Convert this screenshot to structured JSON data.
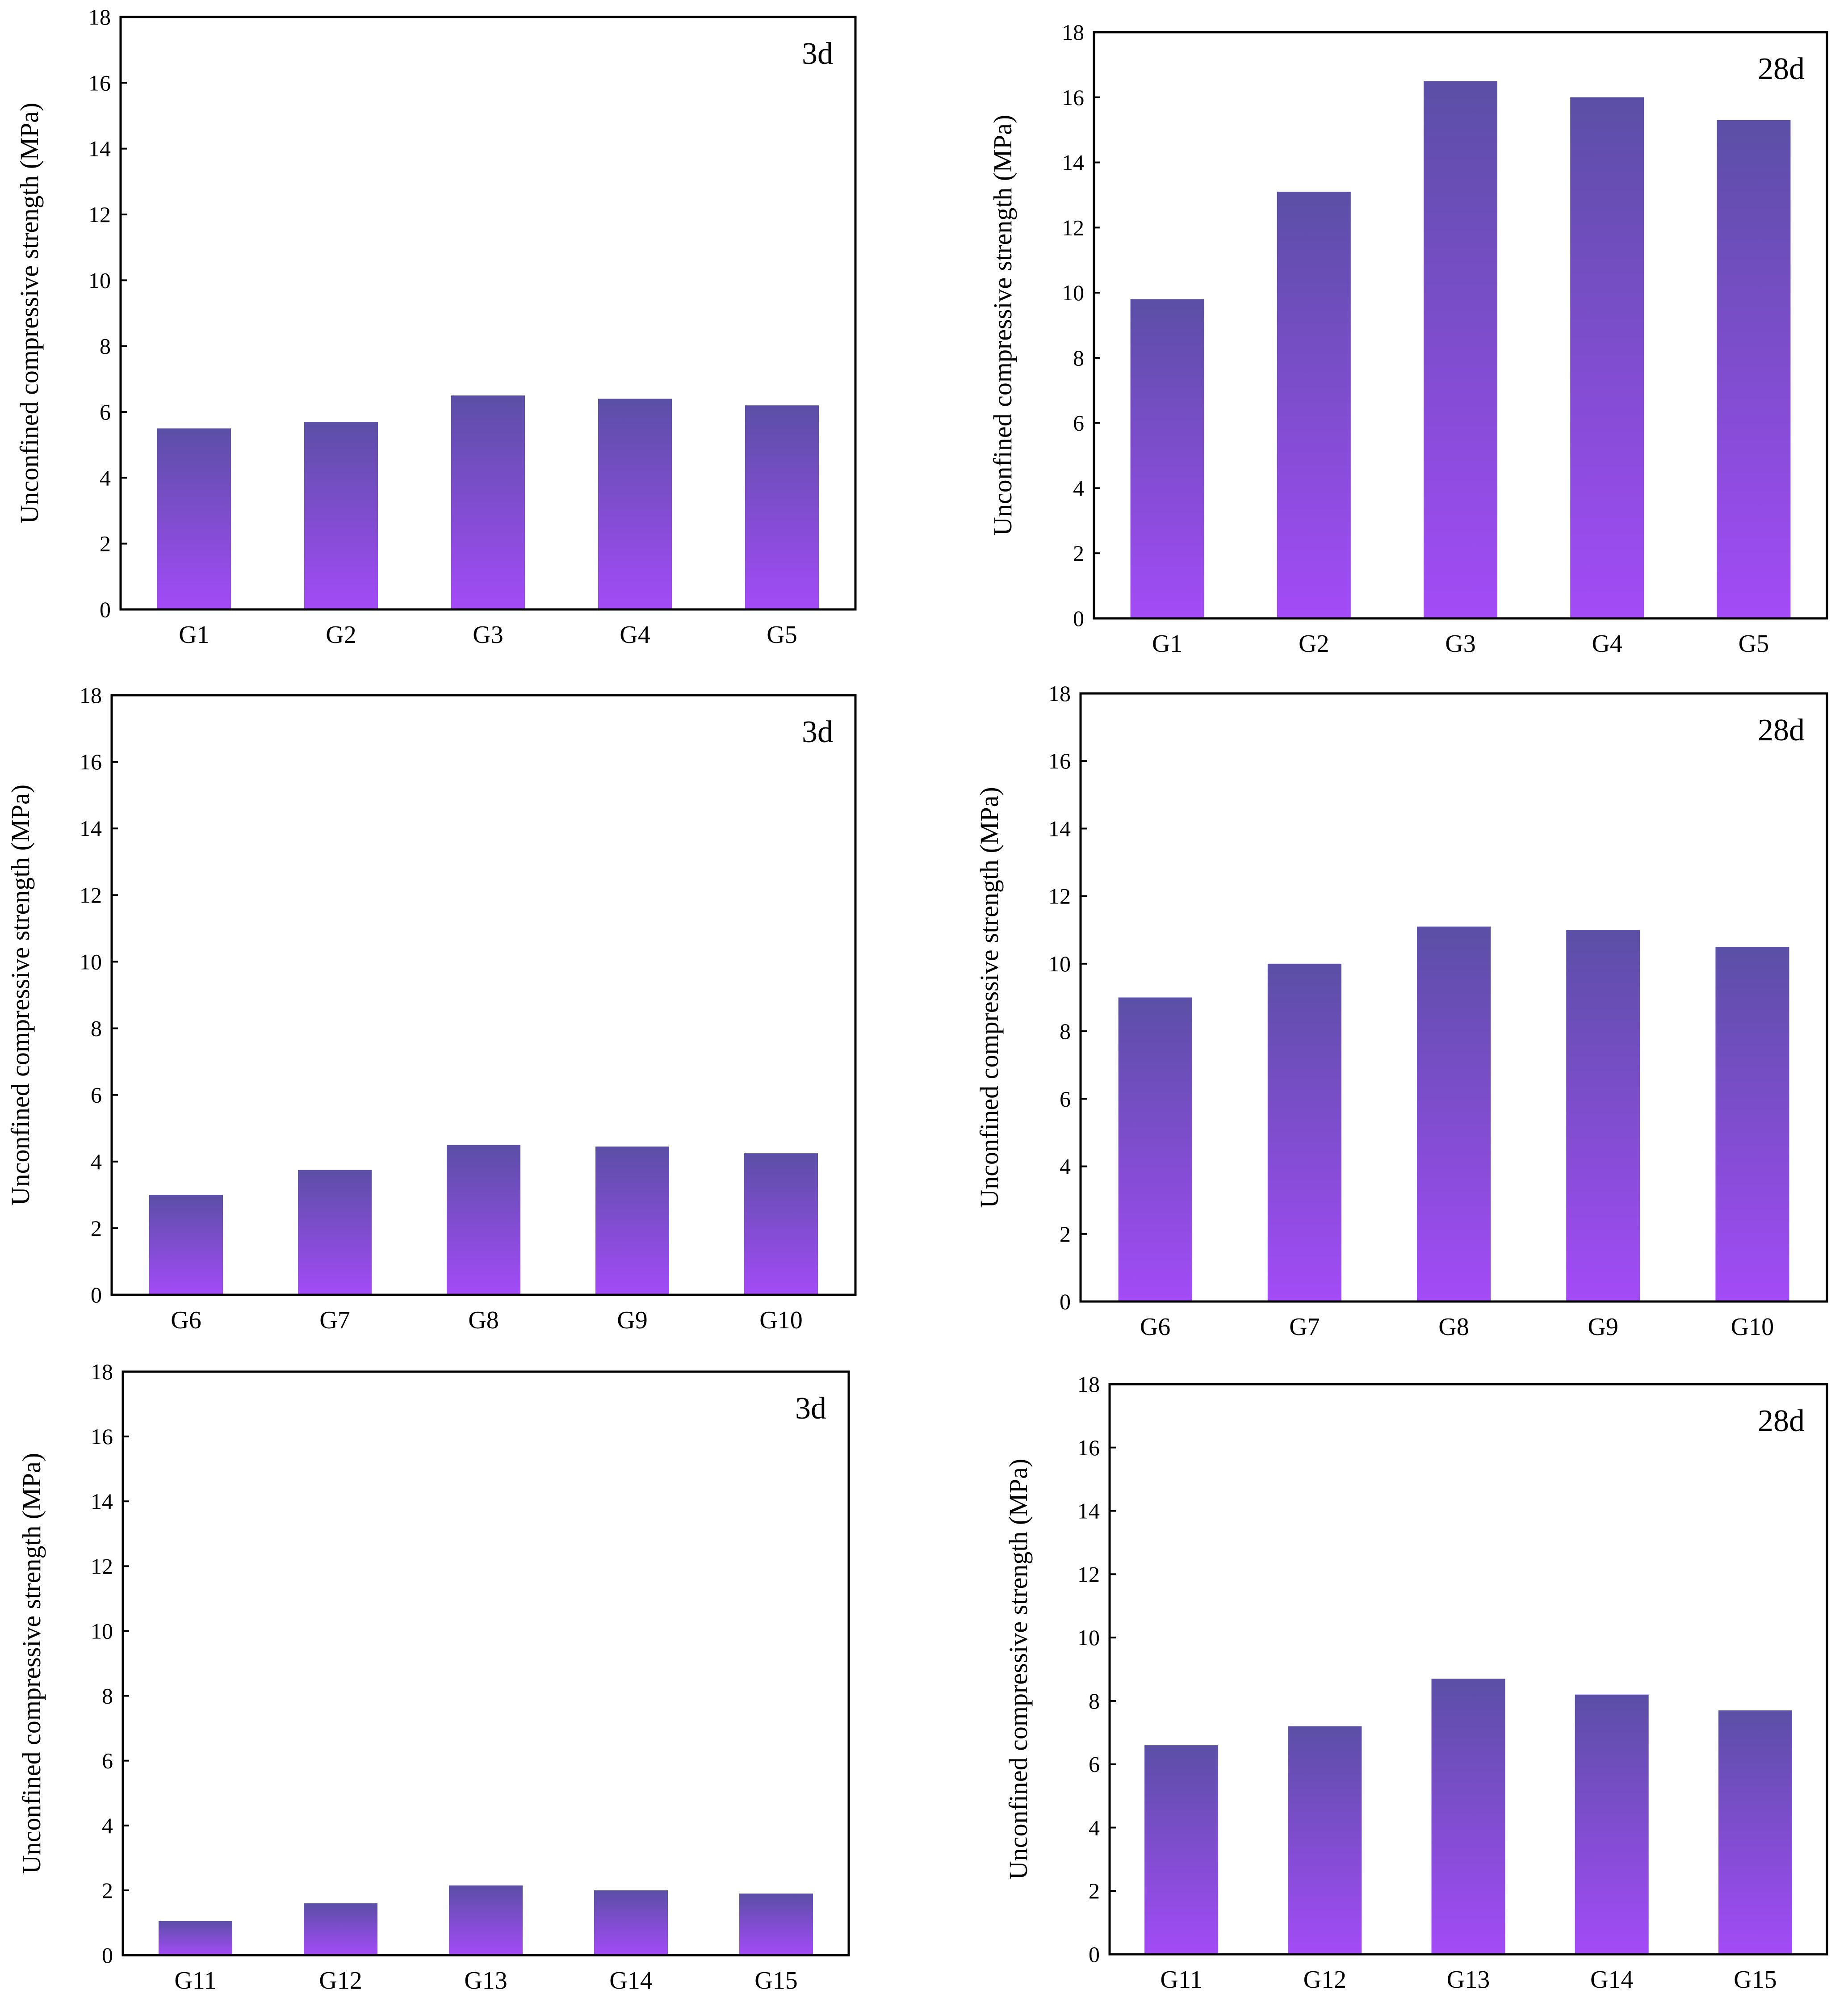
{
  "colors": {
    "bar_top": "#5b4fa6",
    "bar_bottom": "#a34bf7",
    "axis": "#000000",
    "background": "#ffffff"
  },
  "chart_data": [
    {
      "type": "bar",
      "panel_label": "3d",
      "categories": [
        "G1",
        "G2",
        "G3",
        "G4",
        "G5"
      ],
      "values": [
        5.5,
        5.7,
        6.5,
        6.4,
        6.2
      ],
      "ylabel": "Unconfined compressive strength (MPa)",
      "ylim": [
        0,
        18
      ],
      "yticks": [
        "0",
        "2",
        "4",
        "6",
        "8",
        "10",
        "12",
        "14",
        "16",
        "18"
      ],
      "grid": false
    },
    {
      "type": "bar",
      "panel_label": "28d",
      "categories": [
        "G1",
        "G2",
        "G3",
        "G4",
        "G5"
      ],
      "values": [
        9.8,
        13.1,
        16.5,
        16.0,
        15.3
      ],
      "ylabel": "Unconfined compressive strength (MPa)",
      "ylim": [
        0,
        18
      ],
      "yticks": [
        "0",
        "2",
        "4",
        "6",
        "8",
        "10",
        "12",
        "14",
        "16",
        "18"
      ],
      "grid": false
    },
    {
      "type": "bar",
      "panel_label": "3d",
      "categories": [
        "G6",
        "G7",
        "G8",
        "G9",
        "G10"
      ],
      "values": [
        3.0,
        3.75,
        4.5,
        4.45,
        4.25
      ],
      "ylabel": "Unconfined compressive strength (MPa)",
      "ylim": [
        0,
        18
      ],
      "yticks": [
        "0",
        "2",
        "4",
        "6",
        "8",
        "10",
        "12",
        "14",
        "16",
        "18"
      ],
      "grid": false
    },
    {
      "type": "bar",
      "panel_label": "28d",
      "categories": [
        "G6",
        "G7",
        "G8",
        "G9",
        "G10"
      ],
      "values": [
        9.0,
        10.0,
        11.1,
        11.0,
        10.5
      ],
      "ylabel": "Unconfined compressive strength (MPa)",
      "ylim": [
        0,
        18
      ],
      "yticks": [
        "0",
        "2",
        "4",
        "6",
        "8",
        "10",
        "12",
        "14",
        "16",
        "18"
      ],
      "grid": false
    },
    {
      "type": "bar",
      "panel_label": "3d",
      "categories": [
        "G11",
        "G12",
        "G13",
        "G14",
        "G15"
      ],
      "values": [
        1.05,
        1.6,
        2.15,
        2.0,
        1.9
      ],
      "ylabel": "Unconfined compressive strength (MPa)",
      "ylim": [
        0,
        18
      ],
      "yticks": [
        "0",
        "2",
        "4",
        "6",
        "8",
        "10",
        "12",
        "14",
        "16",
        "18"
      ],
      "grid": false
    },
    {
      "type": "bar",
      "panel_label": "28d",
      "categories": [
        "G11",
        "G12",
        "G13",
        "G14",
        "G15"
      ],
      "values": [
        6.6,
        7.2,
        8.7,
        8.2,
        7.7
      ],
      "ylabel": "Unconfined compressive strength (MPa)",
      "ylim": [
        0,
        18
      ],
      "yticks": [
        "0",
        "2",
        "4",
        "6",
        "8",
        "10",
        "12",
        "14",
        "16",
        "18"
      ],
      "grid": false
    }
  ]
}
